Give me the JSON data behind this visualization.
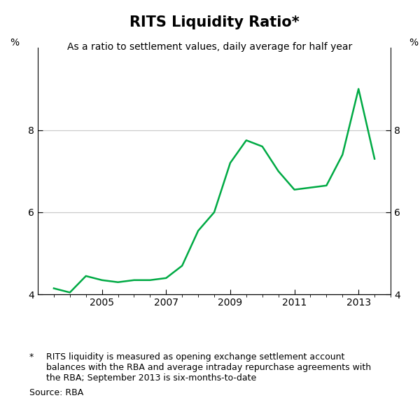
{
  "title": "RITS Liquidity Ratio*",
  "subtitle": "As a ratio to settlement values, daily average for half year",
  "ylabel_left": "%",
  "ylabel_right": "%",
  "line_color": "#00aa44",
  "line_width": 1.8,
  "background_color": "#ffffff",
  "ylim": [
    4,
    10
  ],
  "yticks": [
    4,
    6,
    8
  ],
  "footnote_star": "*",
  "footnote_text": "RITS liquidity is measured as opening exchange settlement account\nbalances with the RBA and average intraday repurchase agreements with\nthe RBA; September 2013 is six-months-to-date",
  "source_text": "Source: RBA",
  "x_values": [
    2003.5,
    2004.0,
    2004.5,
    2005.0,
    2005.5,
    2006.0,
    2006.5,
    2007.0,
    2007.5,
    2008.0,
    2008.5,
    2009.0,
    2009.5,
    2010.0,
    2010.5,
    2011.0,
    2011.5,
    2012.0,
    2012.5,
    2013.0,
    2013.5
  ],
  "y_values": [
    4.15,
    4.05,
    4.45,
    4.35,
    4.3,
    4.35,
    4.35,
    4.4,
    4.7,
    5.55,
    6.0,
    7.2,
    7.75,
    7.6,
    7.0,
    6.55,
    6.6,
    6.65,
    7.4,
    9.0,
    7.3
  ],
  "xticks": [
    2005,
    2007,
    2009,
    2011,
    2013
  ],
  "xlim": [
    2003.0,
    2014.0
  ],
  "grid_color": "#c8c8c8",
  "grid_linewidth": 0.8,
  "title_fontsize": 15,
  "subtitle_fontsize": 10,
  "tick_fontsize": 10,
  "footnote_fontsize": 9
}
